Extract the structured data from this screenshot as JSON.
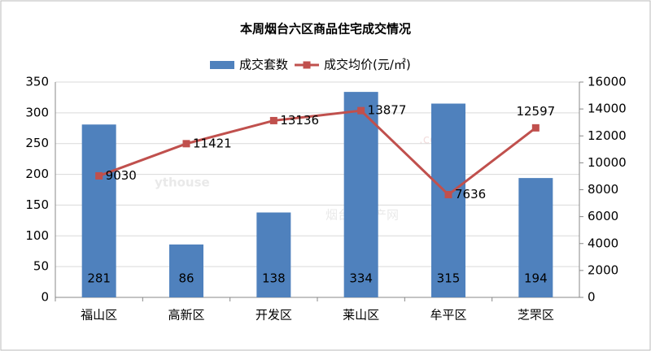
{
  "chart_data": {
    "type": "combo",
    "title": "本周烟台六区商品住宅成交情况",
    "categories": [
      "福山区",
      "高新区",
      "开发区",
      "莱山区",
      "牟平区",
      "芝罘区"
    ],
    "series": [
      {
        "name": "成交套数",
        "type": "bar",
        "color": "#4f81bd",
        "values": [
          281,
          86,
          138,
          334,
          315,
          194
        ]
      },
      {
        "name": "成交均价(元/㎡)",
        "type": "line",
        "axis": "y2",
        "color": "#c0504d",
        "values": [
          9030,
          11421,
          13136,
          13877,
          7636,
          12597
        ]
      }
    ],
    "ylim": [
      0,
      350
    ],
    "yticks": [
      0,
      50,
      100,
      150,
      200,
      250,
      300,
      350
    ],
    "y2lim": [
      0,
      16000
    ],
    "y2ticks": [
      0,
      2000,
      4000,
      6000,
      8000,
      10000,
      12000,
      14000,
      16000
    ],
    "grid": true,
    "legend": "top",
    "watermark": {
      "main": "ythouse",
      "domain": ".com",
      "sub": "烟台房地产网"
    }
  }
}
